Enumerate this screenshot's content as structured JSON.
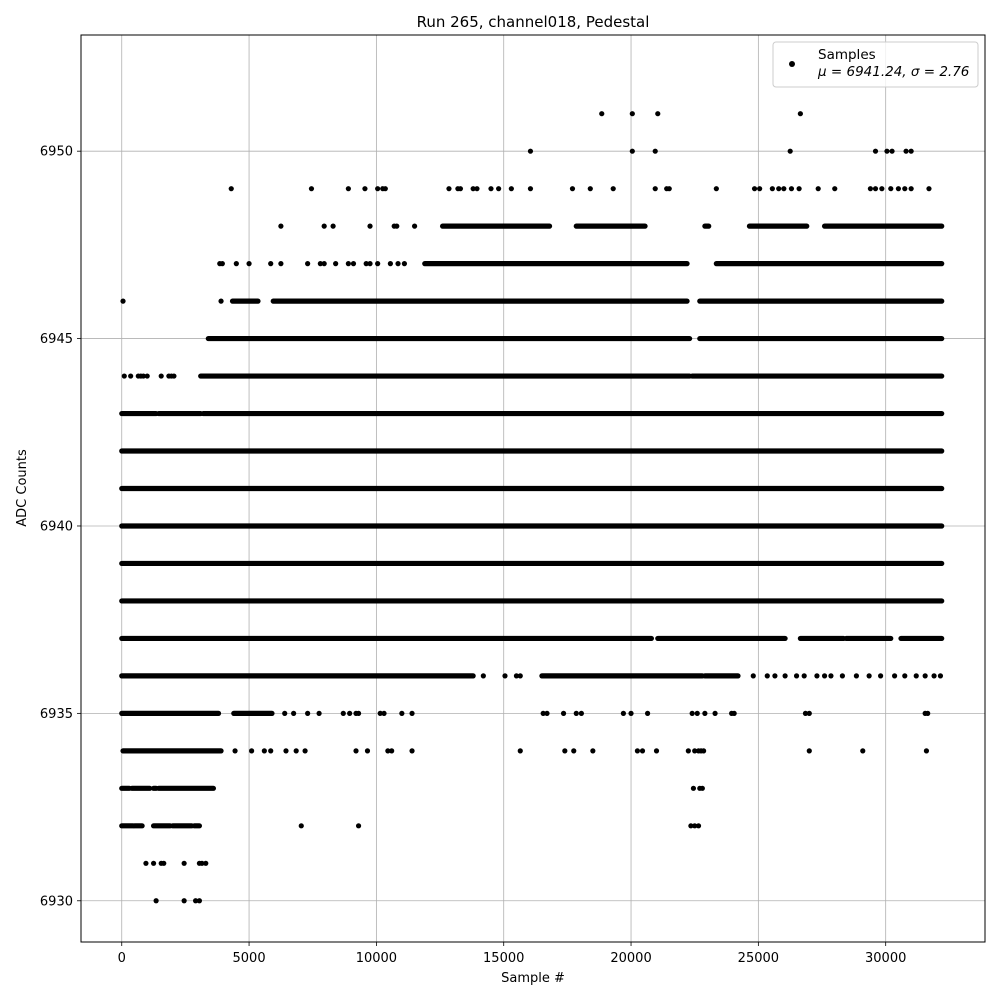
{
  "chart_data": {
    "type": "scatter",
    "title": "Run 265, channel018, Pedestal",
    "xlabel": "Sample #",
    "ylabel": "ADC Counts",
    "xlim": [
      -1600,
      33900
    ],
    "ylim": [
      6928.9,
      6953.1
    ],
    "xticks": [
      0,
      5000,
      10000,
      15000,
      20000,
      25000,
      30000
    ],
    "yticks": [
      6930,
      6935,
      6940,
      6945,
      6950
    ],
    "grid": true,
    "legend_position": "upper right",
    "series": [
      {
        "name": "Samples",
        "color": "#000000",
        "marker": "circle",
        "sample_count": 32300,
        "levels": [
          {
            "y": 6951,
            "x": [
              18850,
              20050,
              21050,
              26650
            ]
          },
          {
            "y": 6950,
            "x": [
              16050,
              20050,
              20950,
              26250,
              29600,
              30050,
              30250,
              30800,
              31000
            ]
          },
          {
            "y": 6949,
            "x": [
              4300,
              7450,
              8900,
              9550,
              10050,
              10250,
              10350,
              12850,
              13200,
              13300,
              13800,
              13950,
              14500,
              14800,
              15300,
              16050,
              17700,
              18400,
              19300,
              20950,
              21400,
              21500,
              23350,
              24850,
              25050,
              25550,
              25800,
              26000,
              26300,
              26600,
              27350,
              28000,
              29400,
              29600,
              29850,
              30200,
              30500,
              30750,
              31000,
              31700
            ]
          },
          {
            "y": 6948,
            "x_ranges": [
              [
                12600,
                16800
              ],
              [
                17850,
                20550
              ],
              [
                22900,
                23050
              ],
              [
                24650,
                26900
              ],
              [
                27600,
                32200
              ]
            ],
            "x": [
              6250,
              7950,
              8300,
              9750,
              10700,
              10800,
              11500
            ]
          },
          {
            "y": 6947,
            "x_ranges": [
              [
                11900,
                22200
              ],
              [
                23350,
                32200
              ]
            ],
            "x": [
              3850,
              3950,
              4500,
              5000,
              5850,
              6250,
              7300,
              7800,
              7950,
              8400,
              8900,
              9100,
              9600,
              9750,
              10050,
              10550,
              10850,
              11100
            ]
          },
          {
            "y": 6946,
            "x_ranges": [
              [
                4350,
                5350
              ],
              [
                5950,
                22200
              ],
              [
                22700,
                32200
              ]
            ],
            "x": [
              50,
              3900
            ]
          },
          {
            "y": 6945,
            "x_ranges": [
              [
                3400,
                22300
              ],
              [
                22700,
                32200
              ]
            ]
          },
          {
            "y": 6944,
            "x_ranges": [
              [
                3100,
                22300
              ],
              [
                22400,
                32200
              ]
            ],
            "x": [
              100,
              350,
              650,
              750,
              850,
              1000,
              1550,
              1850,
              1950,
              2050
            ]
          },
          {
            "y": 6943,
            "x_ranges": [
              [
                0,
                1350
              ],
              [
                1450,
                3100
              ],
              [
                3200,
                32200
              ]
            ]
          },
          {
            "y": 6942,
            "x_ranges": [
              [
                0,
                32200
              ]
            ]
          },
          {
            "y": 6941,
            "x_ranges": [
              [
                0,
                32200
              ]
            ]
          },
          {
            "y": 6940,
            "x_ranges": [
              [
                0,
                32200
              ]
            ]
          },
          {
            "y": 6939,
            "x_ranges": [
              [
                0,
                32200
              ]
            ]
          },
          {
            "y": 6938,
            "x_ranges": [
              [
                0,
                32200
              ]
            ]
          },
          {
            "y": 6937,
            "x_ranges": [
              [
                0,
                20800
              ],
              [
                21050,
                26050
              ],
              [
                26650,
                28350
              ],
              [
                28450,
                30200
              ],
              [
                30600,
                32200
              ]
            ]
          },
          {
            "y": 6936,
            "x_ranges": [
              [
                0,
                13800
              ],
              [
                16500,
                22800
              ],
              [
                22900,
                24200
              ]
            ],
            "x": [
              14200,
              15050,
              15500,
              15650,
              24800,
              25350,
              25650,
              26050,
              26500,
              26800,
              27300,
              27600,
              27850,
              28300,
              28850,
              29350,
              29800,
              30350,
              30750,
              31200,
              31550,
              31900,
              32150
            ]
          },
          {
            "y": 6935,
            "x_ranges": [
              [
                0,
                3800
              ],
              [
                4400,
                5900
              ]
            ],
            "x": [
              6400,
              6750,
              7300,
              7750,
              8700,
              8950,
              9200,
              9300,
              10150,
              10300,
              11000,
              11400,
              16550,
              16700,
              17350,
              17850,
              18050,
              19700,
              20000,
              20650,
              22400,
              22600,
              22900,
              23300,
              23950,
              24050,
              26850,
              27000,
              31550,
              31650
            ]
          },
          {
            "y": 6934,
            "x_ranges": [
              [
                50,
                3900
              ]
            ],
            "x": [
              4450,
              5100,
              5600,
              5850,
              6450,
              6850,
              7200,
              9200,
              9650,
              10450,
              10600,
              11400,
              15650,
              17400,
              17750,
              18500,
              20250,
              20450,
              21000,
              22250,
              22500,
              22650,
              22750,
              22850,
              27000,
              29100,
              31600
            ]
          },
          {
            "y": 6933,
            "x_ranges": [
              [
                0,
                300
              ],
              [
                400,
                1100
              ],
              [
                1250,
                1350
              ],
              [
                1450,
                3600
              ]
            ],
            "x": [
              22450,
              22700,
              22800
            ]
          },
          {
            "y": 6932,
            "x_ranges": [
              [
                0,
                450
              ],
              [
                500,
                800
              ],
              [
                1250,
                1900
              ],
              [
                2000,
                2750
              ],
              [
                2850,
                3050
              ]
            ],
            "x": [
              7050,
              9300,
              22350,
              22500,
              22650
            ]
          },
          {
            "y": 6931,
            "x": [
              950,
              1250,
              1550,
              1650,
              2450,
              3050,
              3150,
              3300
            ]
          },
          {
            "y": 6930,
            "x": [
              1350,
              2450,
              2900,
              3050
            ]
          }
        ]
      }
    ],
    "legend": {
      "entry_label": "Samples",
      "stats_label": "μ = 6941.24, σ = 2.76"
    },
    "stats": {
      "mu": 6941.24,
      "sigma": 2.76
    }
  }
}
